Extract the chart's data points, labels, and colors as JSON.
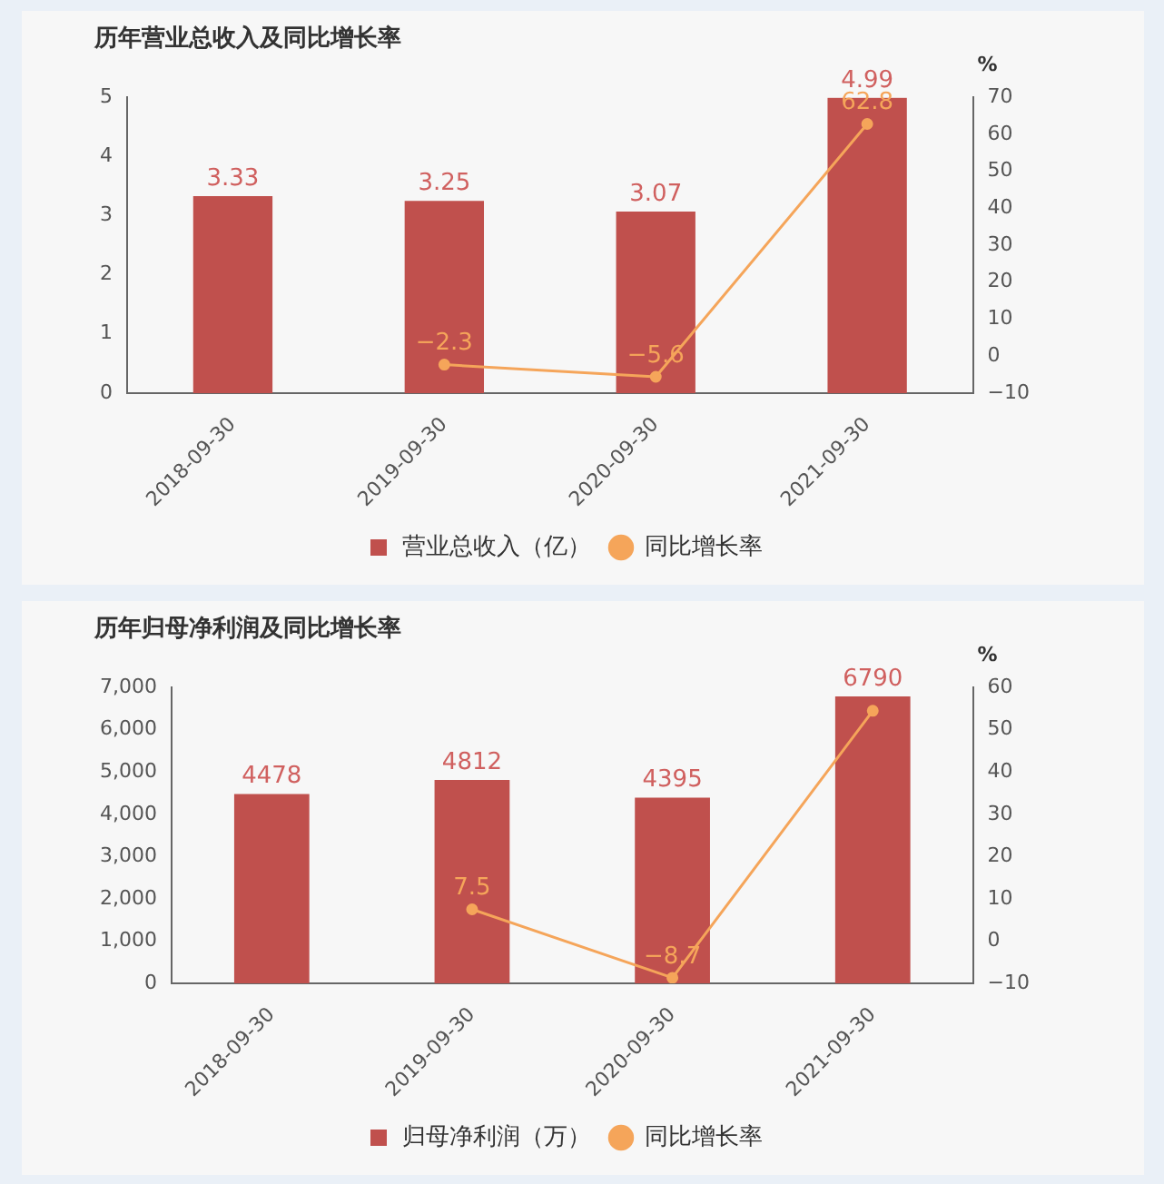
{
  "chart_data": [
    {
      "type": "bar",
      "title": "历年营业总收入及同比增长率",
      "categories": [
        "2018-09-30",
        "2019-09-30",
        "2020-09-30",
        "2021-09-30"
      ],
      "series": [
        {
          "name": "营业总收入（亿）",
          "color": "#c0504d",
          "values": [
            3.33,
            3.25,
            3.07,
            4.99
          ],
          "value_labels": [
            "3.33",
            "3.25",
            "3.07",
            "4.99"
          ]
        },
        {
          "name": "同比增长率",
          "type": "line",
          "axis": "y2",
          "color": "#f5a55a",
          "values": [
            null,
            -2.3,
            -5.6,
            62.8
          ],
          "value_labels": [
            null,
            "−2.3",
            "−5.6",
            "62.8"
          ]
        }
      ],
      "ylim": [
        0,
        5
      ],
      "yticks": [
        0,
        1,
        2,
        3,
        4,
        5
      ],
      "y2label": "%",
      "y2lim": [
        -10,
        70
      ],
      "y2ticks": [
        -10,
        0,
        10,
        20,
        30,
        40,
        50,
        60,
        70
      ],
      "legend": "bottom",
      "marker": "circle"
    },
    {
      "type": "bar",
      "title": "历年归母净利润及同比增长率",
      "categories": [
        "2018-09-30",
        "2019-09-30",
        "2020-09-30",
        "2021-09-30"
      ],
      "series": [
        {
          "name": "归母净利润（万）",
          "color": "#c0504d",
          "values": [
            4478,
            4812,
            4395,
            6790
          ],
          "value_labels": [
            "4478",
            "4812",
            "4395",
            "6790"
          ]
        },
        {
          "name": "同比增长率",
          "type": "line",
          "axis": "y2",
          "color": "#f5a55a",
          "values": [
            null,
            7.5,
            -8.7,
            54.5
          ],
          "value_labels": [
            null,
            "7.5",
            "−8.7",
            null
          ]
        }
      ],
      "ylim": [
        0,
        7000
      ],
      "yticks": [
        {
          "value": 0,
          "label": "0"
        },
        {
          "value": 1000,
          "label": "1,000"
        },
        {
          "value": 2000,
          "label": "2,000"
        },
        {
          "value": 3000,
          "label": "3,000"
        },
        {
          "value": 4000,
          "label": "4,000"
        },
        {
          "value": 5000,
          "label": "5,000"
        },
        {
          "value": 6000,
          "label": "6,000"
        },
        {
          "value": 7000,
          "label": "7,000"
        }
      ],
      "y2label": "%",
      "y2lim": [
        -10,
        60
      ],
      "y2ticks": [
        -10,
        0,
        10,
        20,
        30,
        40,
        50,
        60
      ],
      "legend": "bottom",
      "marker": "circle"
    }
  ]
}
